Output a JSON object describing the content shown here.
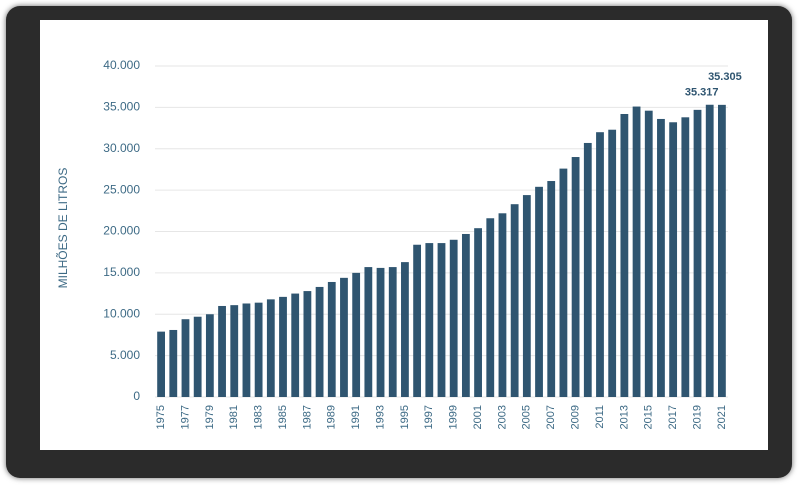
{
  "chart_data": {
    "type": "bar",
    "y_label": "MILHÕES DE LITROS",
    "categories": [
      "1975",
      null,
      "1977",
      null,
      "1979",
      null,
      "1981",
      null,
      "1983",
      null,
      "1985",
      null,
      "1987",
      null,
      "1989",
      null,
      "1991",
      null,
      "1993",
      null,
      "1995",
      null,
      "1997",
      null,
      "1999",
      null,
      "2001",
      null,
      "2003",
      null,
      "2005",
      null,
      "2007",
      null,
      "2009",
      null,
      "2011",
      null,
      "2013",
      null,
      "2015",
      null,
      "2017",
      null,
      "2019",
      null,
      "2021"
    ],
    "values": [
      7900,
      8100,
      9400,
      9700,
      10000,
      11000,
      11100,
      11300,
      11400,
      11800,
      12100,
      12500,
      12800,
      13300,
      13900,
      14400,
      15000,
      15700,
      15600,
      15700,
      16300,
      18400,
      18600,
      18600,
      19000,
      19700,
      20400,
      21600,
      22200,
      23300,
      24400,
      25400,
      26100,
      27600,
      29000,
      30700,
      32000,
      32300,
      34200,
      35100,
      34600,
      33600,
      33200,
      33800,
      34700,
      35317,
      35305
    ],
    "value_labels": [
      null,
      null,
      null,
      null,
      null,
      null,
      null,
      null,
      null,
      null,
      null,
      null,
      null,
      null,
      null,
      null,
      null,
      null,
      null,
      null,
      null,
      null,
      null,
      null,
      null,
      null,
      null,
      null,
      null,
      null,
      null,
      null,
      null,
      null,
      null,
      null,
      null,
      null,
      null,
      null,
      null,
      null,
      null,
      null,
      null,
      "35.317",
      "35.305"
    ],
    "color": "#2f5570",
    "ylim": [
      0,
      40000
    ],
    "yticks": [
      0,
      {
        "value": 5000,
        "label": "5.000"
      },
      {
        "value": 10000,
        "label": "10.000"
      },
      {
        "value": 15000,
        "label": "15.000"
      },
      {
        "value": 20000,
        "label": "20.000"
      },
      {
        "value": 25000,
        "label": "25.000"
      },
      {
        "value": 30000,
        "label": "30.000"
      },
      {
        "value": 35000,
        "label": "35.000"
      },
      {
        "value": 40000,
        "label": "40.000"
      }
    ],
    "grid": true
  }
}
